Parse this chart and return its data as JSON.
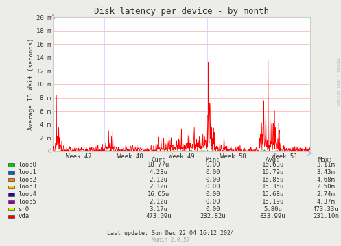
{
  "title": "Disk latency per device - by month",
  "ylabel": "Average IO Wait (seconds)",
  "background_color": "#ECECE8",
  "plot_bg_color": "#FFFFFF",
  "grid_color_h": "#FFAAAA",
  "grid_color_v": "#CCCCFF",
  "border_color": "#AAAAAA",
  "x_tick_labels": [
    "Week 47",
    "Week 48",
    "Week 49",
    "Week 50",
    "Week 51"
  ],
  "y_tick_labels": [
    "0",
    "2 m",
    "4 m",
    "6 m",
    "8 m",
    "10 m",
    "12 m",
    "14 m",
    "16 m",
    "18 m",
    "20 m"
  ],
  "y_max": 0.02,
  "y_tick_vals": [
    0,
    0.002,
    0.004,
    0.006,
    0.008,
    0.01,
    0.012,
    0.014,
    0.016,
    0.018,
    0.02
  ],
  "right_label": "RRDTOOL / TOBI OETIKER",
  "legend_entries": [
    {
      "label": "loop0",
      "color": "#00CC00"
    },
    {
      "label": "loop1",
      "color": "#0066B3"
    },
    {
      "label": "loop2",
      "color": "#FF8000"
    },
    {
      "label": "loop3",
      "color": "#FFCC00"
    },
    {
      "label": "loop4",
      "color": "#330099"
    },
    {
      "label": "loop5",
      "color": "#990099"
    },
    {
      "label": "sr0",
      "color": "#CCFF00"
    },
    {
      "label": "vda",
      "color": "#FF0000"
    }
  ],
  "table_headers": [
    "Cur:",
    "Min:",
    "Avg:",
    "Max:"
  ],
  "table_data": [
    [
      "18.77u",
      "0.00",
      "16.63u",
      "3.11m"
    ],
    [
      "4.23u",
      "0.00",
      "16.79u",
      "3.43m"
    ],
    [
      "2.12u",
      "0.00",
      "16.85u",
      "4.68m"
    ],
    [
      "2.12u",
      "0.00",
      "15.35u",
      "2.50m"
    ],
    [
      "16.65u",
      "0.00",
      "15.68u",
      "2.74m"
    ],
    [
      "2.12u",
      "0.00",
      "15.19u",
      "4.37m"
    ],
    [
      "3.17u",
      "0.00",
      "5.80u",
      "473.33u"
    ],
    [
      "473.09u",
      "232.82u",
      "833.99u",
      "231.10m"
    ]
  ],
  "last_update": "Last update: Sun Dec 22 04:16:12 2024",
  "munin_version": "Munin 2.0.57"
}
